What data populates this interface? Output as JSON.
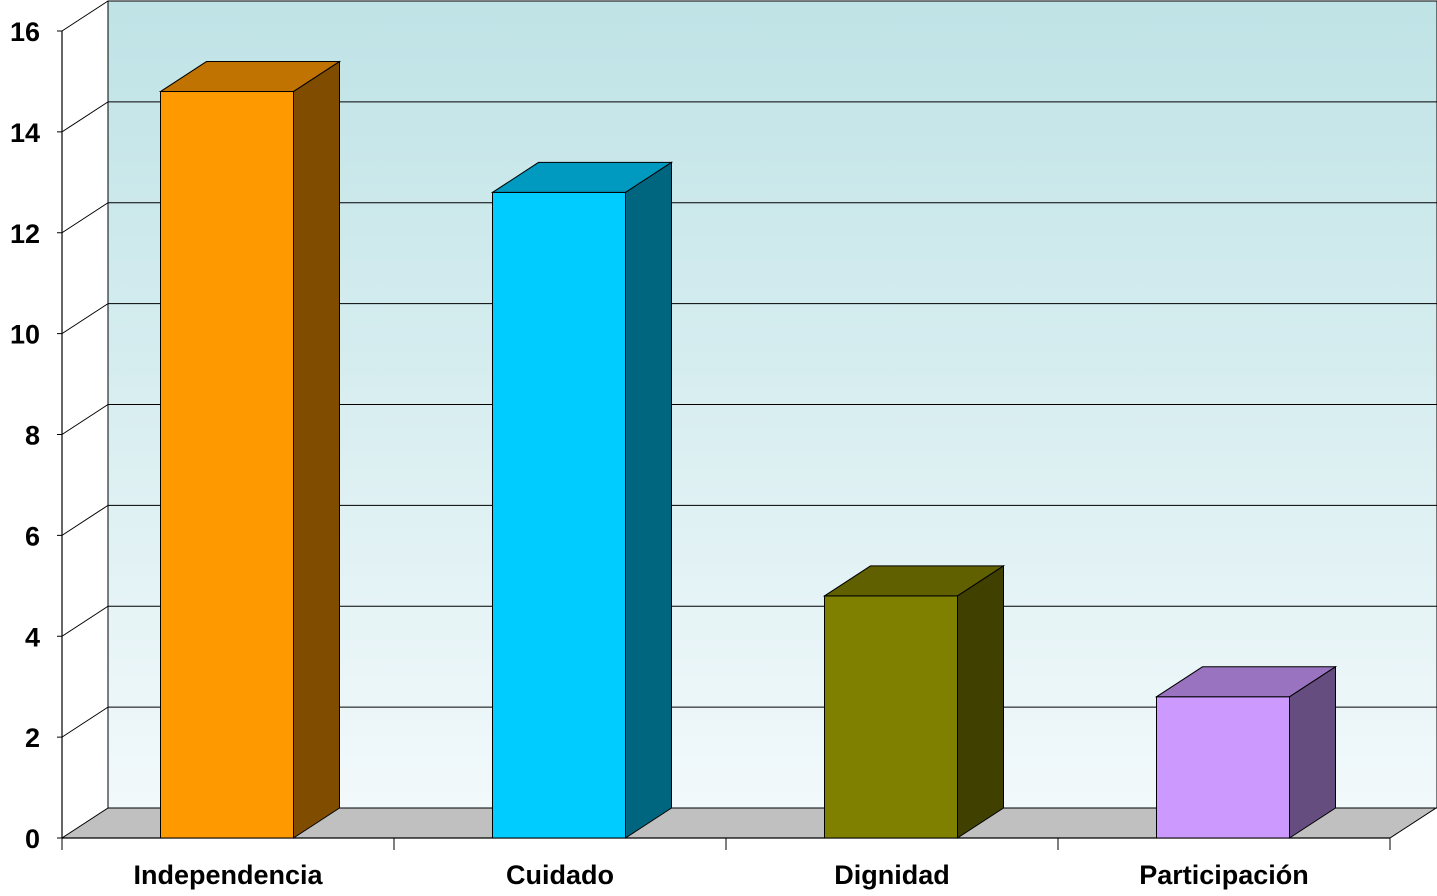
{
  "chart_data": {
    "type": "bar",
    "title": "",
    "xlabel": "",
    "ylabel": "",
    "categories": [
      "Independencia",
      "Cuidado",
      "Dignidad",
      "Participación"
    ],
    "values": [
      14.8,
      12.8,
      4.8,
      2.8
    ],
    "ylim": [
      0,
      16
    ],
    "yticks": [
      "0",
      "2",
      "4",
      "6",
      "8",
      "10",
      "12",
      "14",
      "16"
    ],
    "grid": true,
    "legend": "none",
    "three_d": true,
    "bar_colors": [
      {
        "front": "#FF9900",
        "top": "#C07300",
        "side": "#804D00"
      },
      {
        "front": "#00CCFF",
        "top": "#0099C0",
        "side": "#006680"
      },
      {
        "front": "#808000",
        "top": "#606000",
        "side": "#404000"
      },
      {
        "front": "#CC99FF",
        "top": "#9973C0",
        "side": "#664D80"
      }
    ],
    "wall_gradient": [
      "#BFE3E6",
      "#F2F9FB"
    ],
    "floor_color": "#C0C0C0"
  }
}
